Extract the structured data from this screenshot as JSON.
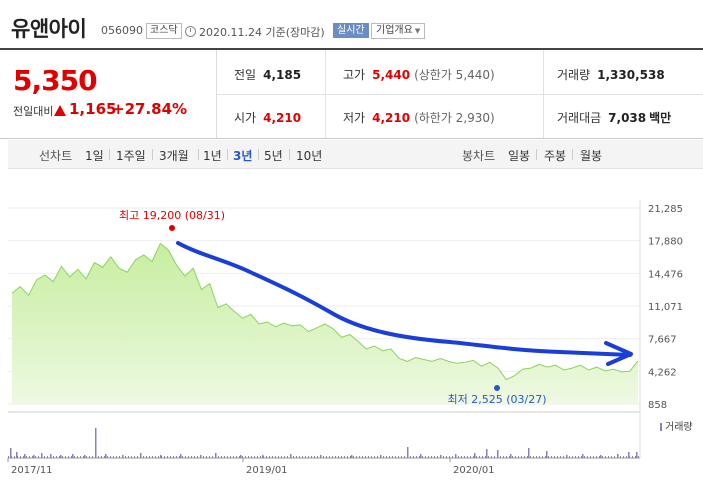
{
  "stock": {
    "name": "유앤아이",
    "code": "056090",
    "market": "코스닥",
    "date": "2020.11.24 기준(장마감)",
    "realtime_label": "실시간",
    "company_info_label": "기업개요",
    "price": "5,350",
    "change_label": "전일대비",
    "change_value": "1,165",
    "change_pct": "+27.84%",
    "up_color": "#e00000"
  },
  "stats": {
    "prev_close": {
      "label": "전일",
      "value": "4,185"
    },
    "high": {
      "label": "고가",
      "value": "5,440",
      "sub": "(상한가 5,440)"
    },
    "volume": {
      "label": "거래량",
      "value": "1,330,538"
    },
    "open": {
      "label": "시가",
      "value": "4,210"
    },
    "low": {
      "label": "저가",
      "value": "4,210",
      "sub": "(하한가 2,930)"
    },
    "amount": {
      "label": "거래대금",
      "value": "7,038",
      "unit": "백만"
    }
  },
  "tabs": {
    "line_label": "선차트",
    "line_periods": [
      "1일",
      "1주일",
      "3개월",
      "1년",
      "3년",
      "5년",
      "10년"
    ],
    "active_period": "3년",
    "candle_label": "봉차트",
    "candle_periods": [
      "일봉",
      "주봉",
      "월봉"
    ]
  },
  "chart_data": {
    "type": "area",
    "title": "",
    "xlabel": "",
    "ylabel": "",
    "ylim": [
      858,
      21285
    ],
    "yticks": [
      "21,285",
      "17,880",
      "14,476",
      "11,071",
      "7,667",
      "4,262",
      "858"
    ],
    "xticks": [
      "2017/11",
      "2019/01",
      "2020/01"
    ],
    "grid": true,
    "series": [
      {
        "values": [
          12400,
          13100,
          12200,
          13800,
          14300,
          13600,
          15200,
          14100,
          14900,
          13900,
          15600,
          15100,
          16200,
          15000,
          14600,
          15900,
          16400,
          15700,
          17600,
          16900,
          15300,
          14200,
          15000,
          12800,
          13400,
          10900,
          11300,
          10500,
          9800,
          10200,
          9200,
          9400,
          8900,
          9300,
          9000,
          9100,
          8400,
          8800,
          9200,
          8700,
          7800,
          8100,
          7400,
          6600,
          6900,
          6400,
          6600,
          5600,
          5300,
          5700,
          5500,
          5300,
          5600,
          5300,
          5100,
          5200,
          5400,
          4800,
          5200,
          4600,
          3400,
          3800,
          4500,
          4600,
          5000,
          4700,
          4900,
          4400,
          4600,
          4900,
          4400,
          4700,
          4300,
          4500,
          4200,
          4262,
          5350
        ]
      }
    ],
    "volume_label": "거래량",
    "annotations": {
      "max_label": "최고 19,200 (08/31)",
      "max_value": 19200,
      "min_label": "최저 2,525 (03/27)",
      "min_value": 2525
    },
    "colors": {
      "line": "#8bd35f",
      "area_top": "#c6ee9f",
      "area_bottom": "#eef9e2",
      "max_marker": "#e00000",
      "min_marker": "#2a57c8",
      "arrow": "#1a3ed8",
      "volume": "#8a80b8"
    }
  }
}
